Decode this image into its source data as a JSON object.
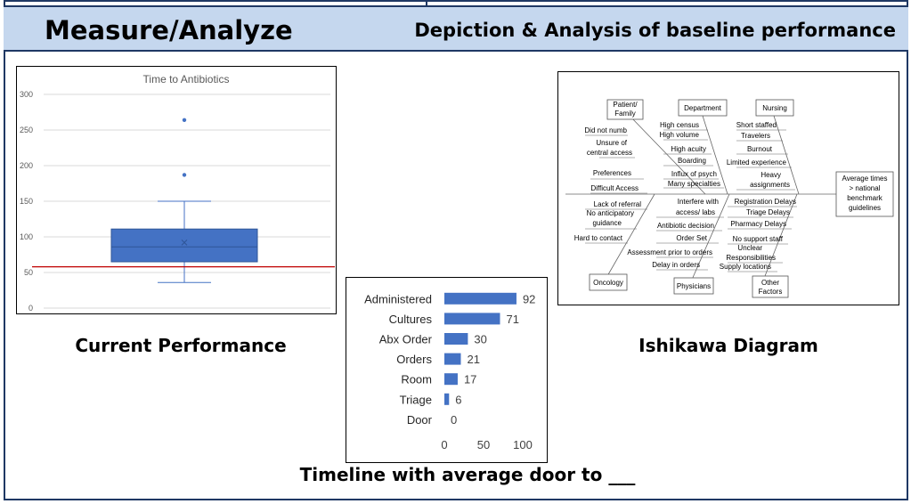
{
  "header": {
    "title": "Measure/Analyze",
    "subtitle": "Depiction & Analysis of baseline performance"
  },
  "captions": {
    "current_performance": "Current Performance",
    "ishikawa": "Ishikawa Diagram",
    "timeline": "Timeline with average door to ___"
  },
  "colors": {
    "header_bg": "#c5d7ee",
    "border": "#1f3864",
    "box_fill": "#4472c4",
    "bar_fill": "#4472c4",
    "benchmark_line": "#c00000"
  },
  "chart_data": [
    {
      "type": "box",
      "title": "Time to Antibiotics",
      "ylim": [
        0,
        300
      ],
      "yticks": [
        0,
        50,
        100,
        150,
        200,
        250,
        300
      ],
      "grid": true,
      "box": {
        "whisker_low": 36,
        "q1": 65,
        "median": 86,
        "mean": 92,
        "q3": 111,
        "whisker_high": 150
      },
      "outliers": [
        187,
        264
      ],
      "reference_line": 58
    },
    {
      "type": "bar",
      "orientation": "horizontal",
      "categories": [
        "Administered",
        "Cultures",
        "Abx Order",
        "Orders",
        "Room",
        "Triage",
        "Door"
      ],
      "values": [
        92,
        71,
        30,
        21,
        17,
        6,
        0
      ],
      "xlim": [
        0,
        100
      ],
      "xticks": [
        0,
        50,
        100
      ]
    },
    {
      "type": "diagram",
      "effect": [
        "Average times",
        "> national",
        "benchmark",
        "guidelines"
      ],
      "top_categories": [
        {
          "name": [
            "Patient/",
            "Family"
          ],
          "causes": [
            "Did not numb",
            "Unsure of",
            "central access",
            "Preferences",
            "Difficult Access"
          ]
        },
        {
          "name": [
            "Department"
          ],
          "causes": [
            "High census",
            "High volume",
            "High acuity",
            "Boarding",
            "Influx of psych",
            "Many specialties"
          ]
        },
        {
          "name": [
            "Nursing"
          ],
          "causes": [
            "Short staffed",
            "Travelers",
            "Burnout",
            "Limited experience",
            "Heavy",
            "assignments"
          ]
        }
      ],
      "bottom_categories": [
        {
          "name": [
            "Oncology"
          ],
          "causes": [
            "Lack of referral",
            "No anticipatory",
            "guidance",
            "Hard to contact"
          ]
        },
        {
          "name": [
            "Physicians"
          ],
          "causes": [
            "Interfere with",
            "access/ labs",
            "Antibiotic decision",
            "Order Set",
            "Assessment prior to orders",
            "Delay in orders"
          ]
        },
        {
          "name": [
            "Other",
            "Factors"
          ],
          "causes": [
            "Registration Delays",
            "Triage Delays",
            "Pharmacy Delays",
            "No support staff",
            "Unclear",
            "Responsibilities",
            "Supply locations"
          ]
        }
      ]
    }
  ]
}
